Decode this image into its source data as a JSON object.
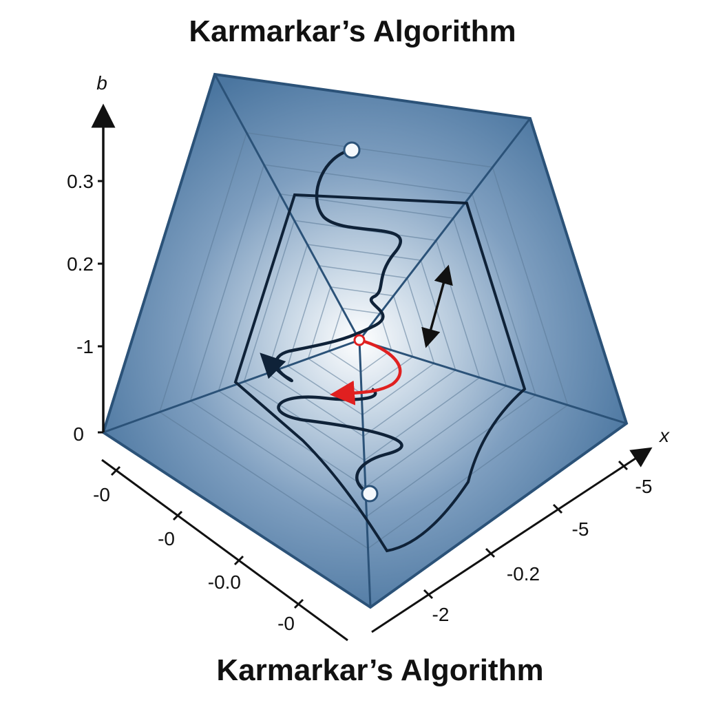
{
  "title_top": "Karmarkar’s Algorithm",
  "title_bottom": "Karmarkar’s Algorithm",
  "axes": {
    "vertical": {
      "label": "b",
      "ticks": [
        "0.3",
        "0.2",
        "-1",
        "0"
      ]
    },
    "left_depth": {
      "ticks": [
        "-0",
        "-0",
        "-0.0",
        "-0"
      ]
    },
    "right_depth": {
      "label": "x",
      "ticks": [
        "-2",
        "-0.2",
        "-5",
        "-5"
      ]
    }
  },
  "colors": {
    "polytope": "#4f7aa3",
    "edge": "#2b5278",
    "path": "#0f2238",
    "step": "#e02020",
    "center_glow": "#ffffff"
  }
}
